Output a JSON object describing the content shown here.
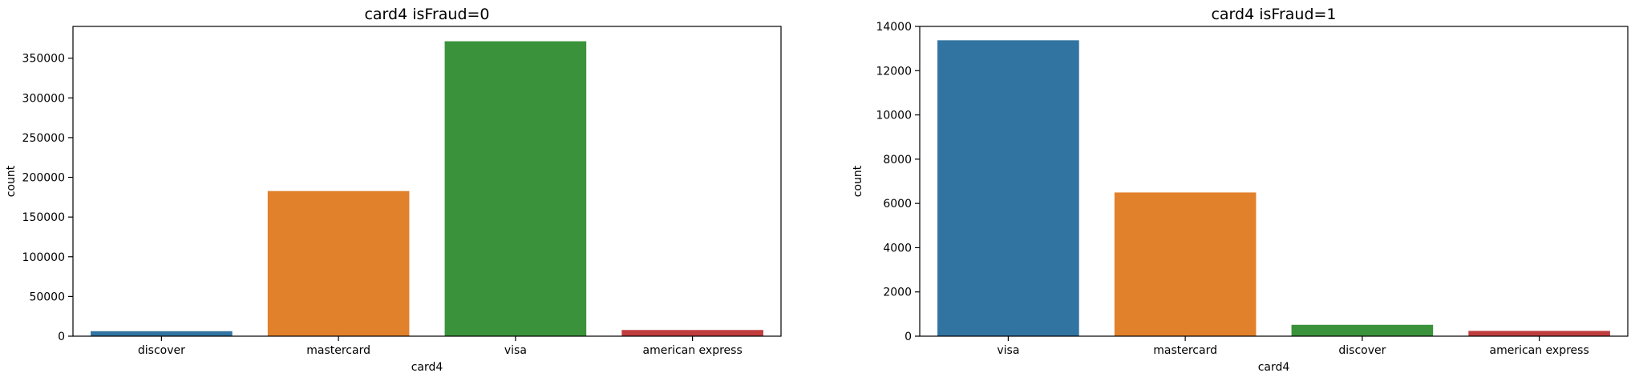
{
  "chart_data": [
    {
      "type": "bar",
      "title": "card4 isFraud=0",
      "xlabel": "card4",
      "ylabel": "count",
      "categories": [
        "discover",
        "mastercard",
        "visa",
        "american express"
      ],
      "values": [
        6300,
        182700,
        371300,
        7800
      ],
      "colors": [
        "#3274a1",
        "#e1812c",
        "#3a923a",
        "#c03d3e"
      ],
      "ylim": [
        0,
        390000
      ],
      "yticks": [
        0,
        50000,
        100000,
        150000,
        200000,
        250000,
        300000,
        350000
      ],
      "grid": false,
      "legend": "none"
    },
    {
      "type": "bar",
      "title": "card4 isFraud=1",
      "xlabel": "card4",
      "ylabel": "count",
      "categories": [
        "visa",
        "mastercard",
        "discover",
        "american express"
      ],
      "values": [
        13373,
        6496,
        514,
        239
      ],
      "colors": [
        "#3274a1",
        "#e1812c",
        "#3a923a",
        "#c03d3e"
      ],
      "ylim": [
        0,
        14000
      ],
      "yticks": [
        0,
        2000,
        4000,
        6000,
        8000,
        10000,
        12000,
        14000
      ],
      "grid": false,
      "legend": "none"
    }
  ]
}
